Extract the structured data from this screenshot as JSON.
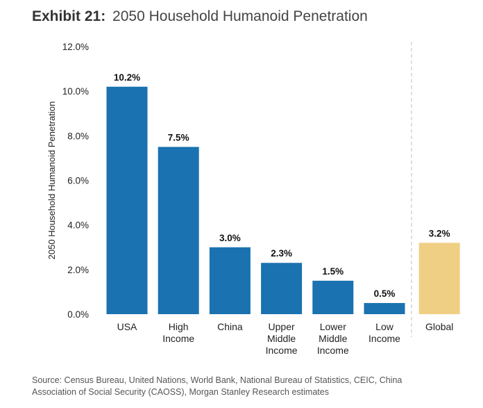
{
  "header": {
    "exhibit_label": "Exhibit 21:",
    "title": "2050 Household Humanoid Penetration"
  },
  "chart_data": {
    "type": "bar",
    "title": "2050 Household Humanoid Penetration",
    "ylabel": "2050 Household Humanoid Penetration",
    "xlabel": "",
    "ylim": [
      0,
      12
    ],
    "yticks": [
      "0.0%",
      "2.0%",
      "4.0%",
      "6.0%",
      "8.0%",
      "10.0%",
      "12.0%"
    ],
    "categories": [
      [
        "USA"
      ],
      [
        "High",
        "Income"
      ],
      [
        "China"
      ],
      [
        "Upper",
        "Middle",
        "Income"
      ],
      [
        "Lower",
        "Middle",
        "Income"
      ],
      [
        "Low",
        "Income"
      ],
      [
        "Global"
      ]
    ],
    "values": [
      10.2,
      7.5,
      3.0,
      2.3,
      1.5,
      0.5,
      3.2
    ],
    "value_labels": [
      "10.2%",
      "7.5%",
      "3.0%",
      "2.3%",
      "1.5%",
      "0.5%",
      "3.2%"
    ],
    "colors": [
      "#1a72b0",
      "#1a72b0",
      "#1a72b0",
      "#1a72b0",
      "#1a72b0",
      "#1a72b0",
      "#efcf84"
    ],
    "separator_before_last": true,
    "grid": false
  },
  "footer": {
    "source_lines": [
      "Source: Census Bureau, United Nations, World Bank, National Bureau of Statistics, CEIC, China",
      "Association of Social Security (CAOSS), Morgan Stanley Research estimates"
    ]
  }
}
